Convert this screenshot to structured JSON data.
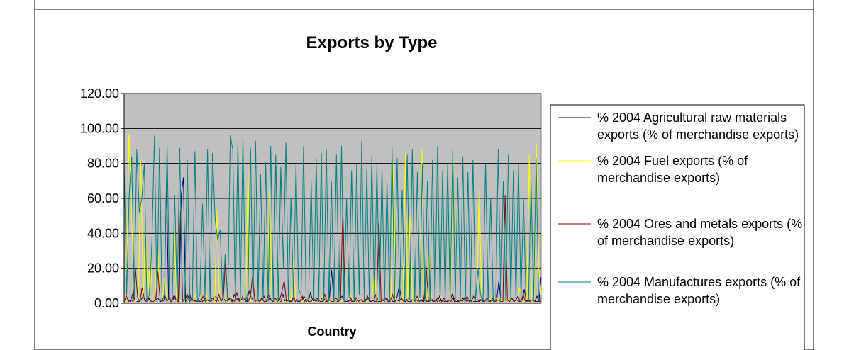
{
  "chart_data": {
    "type": "line",
    "title": "Exports by Type",
    "xlabel": "Country",
    "ylabel": "",
    "ylim": [
      0,
      120
    ],
    "yticks": [
      "0.00",
      "20.00",
      "40.00",
      "60.00",
      "80.00",
      "100.00",
      "120.00"
    ],
    "grid": true,
    "legend_placement": "right",
    "plot_background": "#c0c0c0",
    "series": [
      {
        "name": "% 2004 Agricultural raw materials exports (% of merchandise exports)",
        "color": "#000080",
        "values": [
          1,
          3,
          2,
          1,
          5,
          2,
          1,
          1,
          2,
          4,
          1,
          3,
          2,
          1,
          1,
          2,
          3,
          1,
          1,
          2,
          69,
          3,
          1,
          2,
          4,
          1,
          1,
          62,
          72,
          1,
          3,
          5,
          1,
          2,
          1,
          1,
          2,
          1,
          3,
          2,
          1,
          1,
          2,
          4,
          3,
          1,
          2,
          3,
          1,
          2,
          3,
          1,
          5,
          2,
          3,
          1,
          4,
          2,
          1,
          7,
          3,
          2,
          1,
          3,
          1,
          2,
          4,
          1,
          2,
          3,
          1,
          1,
          3,
          2,
          1,
          5,
          1,
          2,
          1,
          1,
          2,
          3,
          1,
          1,
          2,
          4,
          1,
          1,
          6,
          2,
          1,
          3,
          1,
          2,
          4,
          1,
          1,
          3,
          19,
          2,
          1,
          1,
          3,
          4,
          1,
          2,
          1,
          3,
          1,
          2,
          1,
          1,
          2,
          1,
          2,
          3,
          1,
          1,
          2,
          5,
          1,
          1,
          2,
          1,
          3,
          1,
          2,
          1,
          1,
          4,
          10,
          2,
          1,
          1,
          3,
          2,
          1,
          1,
          2,
          1,
          2,
          1,
          5,
          1,
          1,
          3,
          1,
          2,
          1,
          4,
          1,
          3,
          1,
          1,
          2,
          5,
          1,
          2,
          1,
          1,
          3,
          1,
          4,
          1,
          2,
          1,
          1,
          2,
          1,
          3,
          1,
          2,
          1,
          1,
          3,
          1,
          2,
          13,
          1,
          1,
          1,
          2,
          1,
          3,
          1,
          2,
          4,
          1,
          1,
          8,
          1,
          2,
          1,
          2,
          1,
          4,
          1,
          15
        ]
      },
      {
        "name": "% 2004 Fuel exports (% of merchandise exports)",
        "color": "#ffff00",
        "values": [
          2,
          1,
          97,
          60,
          5,
          1,
          3,
          82,
          1,
          45,
          2,
          27,
          1,
          1,
          38,
          2,
          1,
          15,
          1,
          2,
          1,
          45,
          1,
          2,
          1,
          1,
          3,
          1,
          2,
          1,
          5,
          1,
          1,
          2,
          10,
          1,
          1,
          2,
          1,
          53,
          1,
          2,
          3,
          1,
          1,
          5,
          1,
          2,
          1,
          1,
          4,
          1,
          78,
          1,
          2,
          1,
          3,
          1,
          1,
          2,
          1,
          65,
          2,
          1,
          3,
          1,
          2,
          1,
          1,
          4,
          1,
          24,
          1,
          2,
          1,
          1,
          3,
          1,
          2,
          1,
          1,
          2,
          1,
          4,
          1,
          2,
          1,
          1,
          2,
          1,
          3,
          1,
          2,
          1,
          1,
          5,
          1,
          2,
          1,
          1,
          2,
          1,
          1,
          3,
          1,
          20,
          1,
          2,
          1,
          1,
          2,
          1,
          1,
          80,
          1,
          1,
          2,
          1,
          86,
          1,
          50,
          1,
          1,
          2,
          1,
          88,
          1,
          2,
          29,
          1,
          1,
          2,
          1,
          4,
          1,
          1,
          2,
          1,
          82,
          1,
          2,
          1,
          1,
          2,
          1,
          3,
          1,
          2,
          1,
          67,
          1,
          1,
          2,
          1,
          3,
          1,
          4,
          1,
          2,
          1,
          1,
          3,
          1,
          2,
          1,
          1,
          9,
          1,
          1,
          2,
          85,
          1,
          1,
          91,
          20,
          5
        ]
      },
      {
        "name": "% 2004 Ores and metals exports (% of merchandise exports)",
        "color": "#800000",
        "values": [
          1,
          4,
          1,
          2,
          1,
          20,
          3,
          1,
          9,
          2,
          1,
          3,
          1,
          1,
          2,
          18,
          1,
          2,
          5,
          1,
          3,
          1,
          4,
          2,
          1,
          53,
          1,
          2,
          5,
          1,
          3,
          1,
          2,
          1,
          1,
          4,
          1,
          2,
          1,
          3,
          2,
          1,
          5,
          1,
          3,
          24,
          1,
          3,
          2,
          1,
          6,
          1,
          2,
          3,
          1,
          1,
          4,
          16,
          1,
          2,
          1,
          3,
          1,
          1,
          5,
          2,
          1,
          3,
          1,
          2,
          7,
          13,
          1,
          2,
          1,
          3,
          1,
          2,
          1,
          4,
          1,
          2,
          1,
          1,
          3,
          1,
          2,
          1,
          1,
          5,
          1,
          2,
          1,
          1,
          3,
          1,
          2,
          54,
          1,
          1,
          2,
          1,
          1,
          3,
          1,
          2,
          1,
          1,
          4,
          1,
          2,
          1,
          1,
          46,
          1,
          2,
          3,
          1,
          1,
          5,
          1,
          2,
          1,
          3,
          1,
          2,
          1,
          1,
          2,
          1,
          4,
          1,
          2,
          1,
          21,
          1,
          2,
          1,
          1,
          3,
          1,
          2,
          1,
          1,
          2,
          1,
          4,
          1,
          1,
          2,
          1,
          3,
          1,
          2,
          1,
          4,
          1,
          1,
          2,
          1,
          1,
          3,
          1,
          2,
          1,
          1,
          2,
          1,
          1,
          62,
          2,
          1,
          3,
          1,
          2,
          1,
          1,
          5,
          1,
          2,
          1,
          2,
          1,
          1,
          1,
          1
        ]
      },
      {
        "name": "% 2004 Manufactures exports (% of merchandise exports)",
        "color": "#008080",
        "values": [
          80,
          5,
          62,
          84,
          3,
          88,
          52,
          60,
          80,
          1,
          5,
          35,
          96,
          1,
          89,
          1,
          5,
          91,
          3,
          1,
          62,
          2,
          89,
          1,
          3,
          82,
          1,
          3,
          87,
          1,
          5,
          57,
          3,
          88,
          1,
          86,
          48,
          36,
          42,
          3,
          28,
          1,
          96,
          88,
          1,
          92,
          3,
          95,
          1,
          6,
          89,
          1,
          93,
          2,
          74,
          2,
          81,
          1,
          90,
          1,
          85,
          2,
          78,
          20,
          92,
          1,
          60,
          3,
          80,
          8,
          5,
          90,
          1,
          3,
          70,
          2,
          83,
          1,
          86,
          1,
          88,
          1,
          70,
          1,
          85,
          2,
          90,
          1,
          60,
          3,
          76,
          1,
          80,
          5,
          93,
          1,
          77,
          2,
          84,
          1,
          80,
          2,
          78,
          1,
          70,
          1,
          90,
          1,
          83,
          2,
          65,
          1,
          85,
          2,
          88,
          1,
          75,
          3,
          80,
          1,
          70,
          1,
          82,
          1,
          90,
          2,
          76,
          1,
          80,
          1,
          88,
          1,
          72,
          1,
          84,
          1,
          75,
          1,
          82,
          1,
          20,
          5,
          1,
          80,
          1,
          60,
          3,
          1,
          88,
          1,
          70,
          1,
          85,
          1,
          76,
          1,
          80,
          2,
          60,
          1,
          1,
          70,
          1,
          83,
          2,
          2
        ]
      }
    ]
  }
}
